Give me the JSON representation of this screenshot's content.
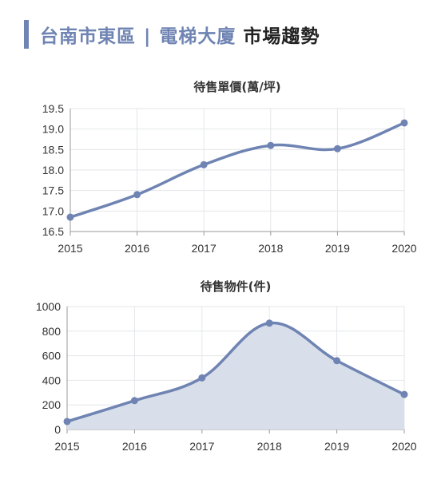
{
  "header": {
    "title_part1": "台南市東區",
    "separator": "|",
    "title_part2": "電梯大廈",
    "title_part3": "市場趨勢",
    "accent_color": "#6f84b3"
  },
  "chart_data": [
    {
      "type": "line",
      "title": "待售單價(萬/坪)",
      "x": [
        "2015",
        "2016",
        "2017",
        "2018",
        "2019",
        "2020"
      ],
      "series": [
        {
          "values": [
            16.85,
            17.4,
            18.13,
            18.6,
            18.52,
            19.15
          ],
          "color": "#6f84b3"
        }
      ],
      "ylim": [
        16.5,
        19.5
      ],
      "yticks": [
        "16.5",
        "17.0",
        "17.5",
        "18.0",
        "18.5",
        "19.0",
        "19.5"
      ],
      "grid": true,
      "smooth": true
    },
    {
      "type": "area",
      "title": "待售物件(件)",
      "x": [
        "2015",
        "2016",
        "2017",
        "2018",
        "2019",
        "2020"
      ],
      "series": [
        {
          "values": [
            65,
            235,
            420,
            865,
            560,
            285
          ],
          "color": "#6f84b3",
          "fill": "#d9dfea"
        }
      ],
      "ylim": [
        0,
        1000
      ],
      "yticks": [
        "0",
        "200",
        "400",
        "600",
        "800",
        "1000"
      ],
      "grid": true,
      "smooth": true
    }
  ]
}
